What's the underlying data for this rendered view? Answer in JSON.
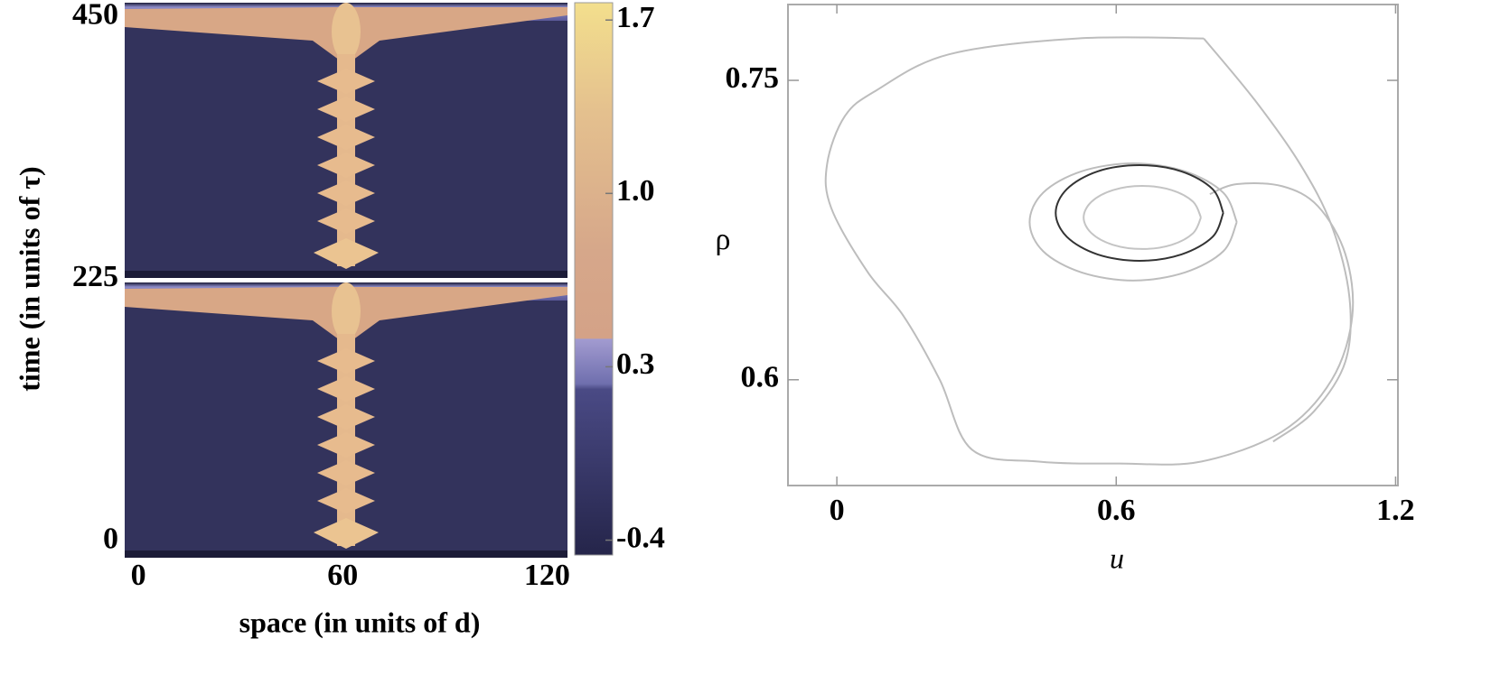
{
  "chart_data": [
    {
      "type": "heatmap",
      "xlabel": "space (in units of d)",
      "ylabel": "time (in units of τ)",
      "xlim": [
        -4,
        126
      ],
      "xticks": [
        0,
        60,
        120
      ],
      "ylim": [
        -12,
        462
      ],
      "yticks": [
        0,
        225,
        450
      ],
      "colorbar": {
        "lim": [
          -0.46,
          1.77
        ],
        "ticks": [
          -0.4,
          0.3,
          {
            "value": 1,
            "label": "1.0"
          },
          1.7
        ]
      }
    },
    {
      "type": "line",
      "xlabel": "u",
      "ylabel": "ρ",
      "xlim": [
        -0.105,
        1.205
      ],
      "xticks": [
        0,
        0.6,
        1.2
      ],
      "ylim": [
        0.547,
        0.788
      ],
      "yticks": [
        0.6,
        0.75
      ],
      "series": [
        {
          "color": "#bdbdbd",
          "x": [
            0.788,
            0.517,
            0.24,
            0.085,
            0.017,
            -0.021,
            -0.012,
            0.066,
            0.143,
            0.221,
            0.29,
            0.434,
            0.608,
            0.782,
            0.956,
            1.063,
            1.107,
            1.092,
            1.033,
            0.956,
            0.859,
            0.801
          ],
          "values": [
            0.771,
            0.771,
            0.763,
            0.745,
            0.732,
            0.708,
            0.686,
            0.654,
            0.632,
            0.6,
            0.565,
            0.559,
            0.558,
            0.559,
            0.574,
            0.6,
            0.632,
            0.663,
            0.687,
            0.697,
            0.698,
            0.693
          ]
        },
        {
          "color": "#bdbdbd",
          "x": [
            0.788,
            0.898,
            0.995,
            1.063,
            1.101,
            1.092,
            1.024,
            0.937
          ],
          "values": [
            0.771,
            0.74,
            0.708,
            0.677,
            0.641,
            0.609,
            0.584,
            0.569
          ]
        },
        {
          "color": "#bdbdbd",
          "x": [
            0.859,
            0.83,
            0.748,
            0.637,
            0.525,
            0.443,
            0.414,
            0.443,
            0.525,
            0.637,
            0.748,
            0.83,
            0.859
          ],
          "values": [
            0.679,
            0.6644,
            0.6538,
            0.6497,
            0.6538,
            0.6644,
            0.679,
            0.6937,
            0.7044,
            0.7084,
            0.7044,
            0.6937,
            0.679
          ]
        },
        {
          "color": "#c4c4c4",
          "x": [
            0.782,
            0.765,
            0.719,
            0.656,
            0.593,
            0.547,
            0.53,
            0.547,
            0.593,
            0.656,
            0.719,
            0.765,
            0.782
          ],
          "values": [
            0.6813,
            0.6734,
            0.6676,
            0.6655,
            0.6676,
            0.6734,
            0.6813,
            0.6892,
            0.695,
            0.6971,
            0.695,
            0.6892,
            0.6813
          ]
        },
        {
          "color": "#333333",
          "x": [
            0.83,
            0.807,
            0.74,
            0.65,
            0.56,
            0.494,
            0.47,
            0.494,
            0.56,
            0.65,
            0.74,
            0.807,
            0.83
          ],
          "values": [
            0.6836,
            0.6716,
            0.6628,
            0.6596,
            0.6628,
            0.6716,
            0.6836,
            0.6955,
            0.7044,
            0.7075,
            0.7044,
            0.6955,
            0.6836
          ]
        }
      ]
    }
  ]
}
